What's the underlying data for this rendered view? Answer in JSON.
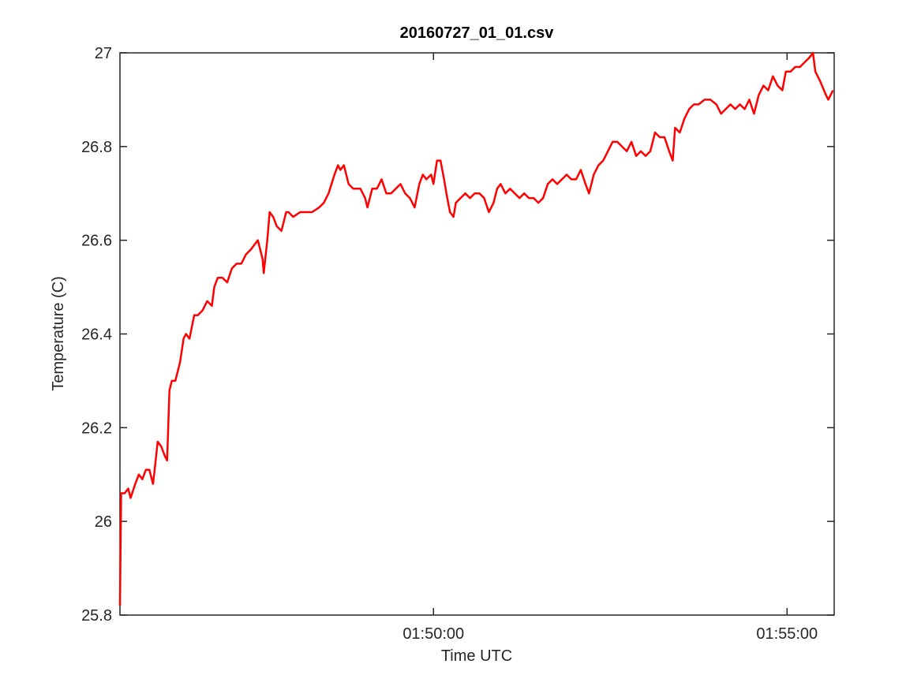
{
  "chart_data": {
    "type": "line",
    "title": "20160727_01_01.csv",
    "xlabel": "Time UTC",
    "ylabel": "Temperature (C)",
    "color": "#ff0000",
    "x": [
      6334,
      6335,
      6338,
      6341,
      6343,
      6347,
      6350,
      6353,
      6356,
      6359,
      6362,
      6363,
      6366,
      6369,
      6372,
      6374,
      6376,
      6378,
      6381,
      6385,
      6388,
      6390,
      6393,
      6397,
      6400,
      6404,
      6408,
      6412,
      6414,
      6417,
      6421,
      6425,
      6429,
      6433,
      6437,
      6441,
      6445,
      6451,
      6455,
      6456,
      6459,
      6461,
      6464,
      6467,
      6471,
      6475,
      6477,
      6481,
      6487,
      6492,
      6497,
      6503,
      6507,
      6511,
      6516,
      6519,
      6521,
      6524,
      6528,
      6532,
      6538,
      6542,
      6544,
      6548,
      6552,
      6556,
      6560,
      6564,
      6568,
      6572,
      6576,
      6580,
      6584,
      6588,
      6591,
      6594,
      6598,
      6600,
      6603,
      6606,
      6609,
      6611,
      6614,
      6617,
      6619,
      6623,
      6627,
      6631,
      6635,
      6639,
      6643,
      6647,
      6651,
      6654,
      6657,
      6661,
      6665,
      6669,
      6673,
      6677,
      6681,
      6685,
      6689,
      6693,
      6697,
      6701,
      6705,
      6709,
      6713,
      6717,
      6721,
      6725,
      6729,
      6732,
      6736,
      6740,
      6744,
      6748,
      6752,
      6756,
      6760,
      6764,
      6768,
      6772,
      6776,
      6780,
      6784,
      6788,
      6792,
      6796,
      6800,
      6803,
      6805,
      6809,
      6813,
      6817,
      6821,
      6825,
      6830,
      6835,
      6840,
      6844,
      6848,
      6852,
      6856,
      6860,
      6864,
      6868,
      6872,
      6876,
      6880,
      6884,
      6888,
      6892,
      6896,
      6899,
      6903,
      6907,
      6911,
      6915,
      6919,
      6922,
      6924,
      6928,
      6933,
      6935,
      6939
    ],
    "values": [
      25.82,
      26.06,
      26.06,
      26.07,
      26.05,
      26.08,
      26.1,
      26.09,
      26.11,
      26.11,
      26.08,
      26.1,
      26.17,
      26.16,
      26.14,
      26.13,
      26.28,
      26.3,
      26.3,
      26.34,
      26.39,
      26.4,
      26.39,
      26.44,
      26.44,
      26.45,
      26.47,
      26.46,
      26.5,
      26.52,
      26.52,
      26.51,
      26.54,
      26.55,
      26.55,
      26.57,
      26.58,
      26.6,
      26.56,
      26.53,
      26.6,
      26.66,
      26.65,
      26.63,
      26.62,
      26.66,
      26.66,
      26.65,
      26.66,
      26.66,
      26.66,
      26.67,
      26.68,
      26.7,
      26.74,
      26.76,
      26.75,
      26.76,
      26.72,
      26.71,
      26.71,
      26.69,
      26.67,
      26.71,
      26.71,
      26.73,
      26.7,
      26.7,
      26.71,
      26.72,
      26.7,
      26.69,
      26.67,
      26.72,
      26.74,
      26.73,
      26.74,
      26.72,
      26.77,
      26.77,
      26.73,
      26.7,
      26.66,
      26.65,
      26.68,
      26.69,
      26.7,
      26.69,
      26.7,
      26.7,
      26.69,
      26.66,
      26.68,
      26.71,
      26.72,
      26.7,
      26.71,
      26.7,
      26.69,
      26.7,
      26.69,
      26.69,
      26.68,
      26.69,
      26.72,
      26.73,
      26.72,
      26.73,
      26.74,
      26.73,
      26.73,
      26.75,
      26.72,
      26.7,
      26.74,
      26.76,
      26.77,
      26.79,
      26.81,
      26.81,
      26.8,
      26.79,
      26.81,
      26.78,
      26.79,
      26.78,
      26.79,
      26.83,
      26.82,
      26.82,
      26.79,
      26.77,
      26.84,
      26.83,
      26.86,
      26.88,
      26.89,
      26.89,
      26.9,
      26.9,
      26.89,
      26.87,
      26.88,
      26.89,
      26.88,
      26.89,
      26.88,
      26.9,
      26.87,
      26.91,
      26.93,
      26.92,
      26.95,
      26.93,
      26.92,
      26.96,
      26.96,
      26.97,
      26.97,
      26.98,
      26.99,
      27.0,
      26.96,
      26.94,
      26.91,
      26.9,
      26.92
    ],
    "xlim": [
      6334,
      6940
    ],
    "xticks": [
      {
        "value": 6600,
        "label": "01:50:00"
      },
      {
        "value": 6900,
        "label": "01:55:00"
      }
    ],
    "ylim": [
      25.8,
      27
    ],
    "yticks": [
      25.8,
      26,
      26.2,
      26.4,
      26.6,
      26.8,
      27
    ],
    "grid": false
  }
}
